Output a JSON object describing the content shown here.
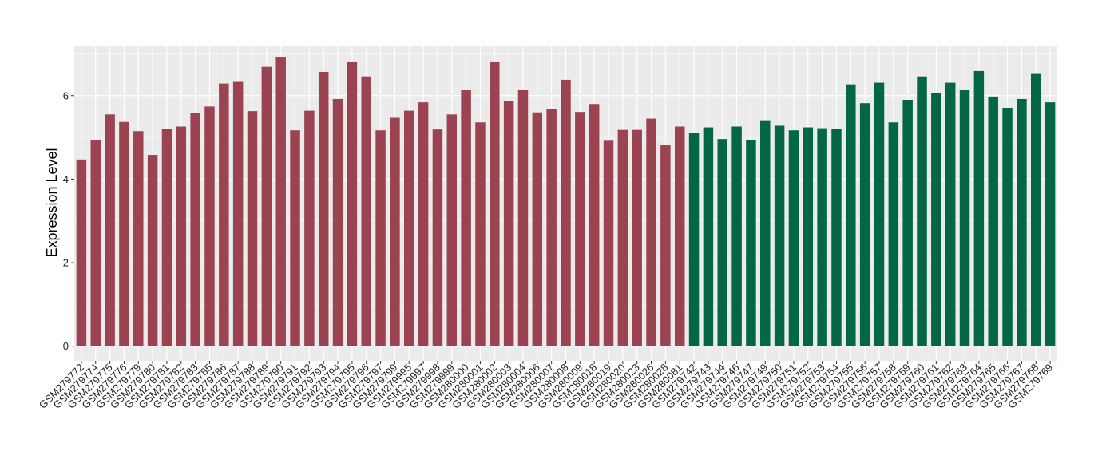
{
  "chart_data": {
    "type": "bar",
    "ylabel": "Expression Level",
    "xlabel": "",
    "ylim": [
      -0.35,
      7.2
    ],
    "yticks": [
      0,
      2,
      4,
      6
    ],
    "grid": true,
    "colors": {
      "group1": "#9B4350",
      "group2": "#036645",
      "panel": "#EBEBEB",
      "grid": "#FFFFFF"
    },
    "categories": [
      "GSM279772",
      "GSM279774",
      "GSM279775",
      "GSM279776",
      "GSM279779",
      "GSM279780",
      "GSM279781",
      "GSM279782",
      "GSM279783",
      "GSM279785",
      "GSM279786",
      "GSM279787",
      "GSM279788",
      "GSM279789",
      "GSM279790",
      "GSM279791",
      "GSM279792",
      "GSM279793",
      "GSM279794",
      "GSM279795",
      "GSM279796",
      "GSM279797",
      "GSM279799",
      "GSM279995",
      "GSM279997",
      "GSM279998",
      "GSM279999",
      "GSM280000",
      "GSM280001",
      "GSM280002",
      "GSM280003",
      "GSM280004",
      "GSM280006",
      "GSM280007",
      "GSM280008",
      "GSM280009",
      "GSM280018",
      "GSM280019",
      "GSM280020",
      "GSM280023",
      "GSM280026",
      "GSM280028",
      "GSM280081",
      "GSM279742",
      "GSM279743",
      "GSM279744",
      "GSM279746",
      "GSM279747",
      "GSM279749",
      "GSM279750",
      "GSM279751",
      "GSM279752",
      "GSM279753",
      "GSM279754",
      "GSM279755",
      "GSM279756",
      "GSM279757",
      "GSM279758",
      "GSM279759",
      "GSM279760",
      "GSM279761",
      "GSM279762",
      "GSM279763",
      "GSM279764",
      "GSM279765",
      "GSM279766",
      "GSM279767",
      "GSM279768",
      "GSM279769"
    ],
    "values": [
      4.47,
      4.93,
      5.55,
      5.37,
      5.15,
      4.58,
      5.2,
      5.26,
      5.59,
      5.74,
      6.29,
      6.33,
      5.63,
      6.69,
      6.92,
      5.17,
      5.64,
      6.57,
      5.92,
      6.8,
      6.46,
      5.17,
      5.47,
      5.64,
      5.84,
      5.19,
      5.55,
      6.13,
      5.36,
      6.8,
      5.88,
      6.13,
      5.6,
      5.68,
      6.38,
      5.61,
      5.8,
      4.92,
      5.18,
      5.18,
      5.45,
      4.81,
      5.26,
      5.1,
      5.24,
      4.96,
      5.26,
      4.94,
      5.41,
      5.28,
      5.17,
      5.24,
      5.22,
      5.21,
      6.27,
      5.82,
      6.31,
      5.36,
      5.9,
      6.46,
      6.06,
      6.31,
      6.13,
      6.59,
      5.98,
      5.71,
      5.92,
      6.52,
      5.84
    ],
    "groups": [
      1,
      1,
      1,
      1,
      1,
      1,
      1,
      1,
      1,
      1,
      1,
      1,
      1,
      1,
      1,
      1,
      1,
      1,
      1,
      1,
      1,
      1,
      1,
      1,
      1,
      1,
      1,
      1,
      1,
      1,
      1,
      1,
      1,
      1,
      1,
      1,
      1,
      1,
      1,
      1,
      1,
      1,
      1,
      2,
      2,
      2,
      2,
      2,
      2,
      2,
      2,
      2,
      2,
      2,
      2,
      2,
      2,
      2,
      2,
      2,
      2,
      2,
      2,
      2,
      2,
      2,
      2,
      2,
      2
    ]
  }
}
